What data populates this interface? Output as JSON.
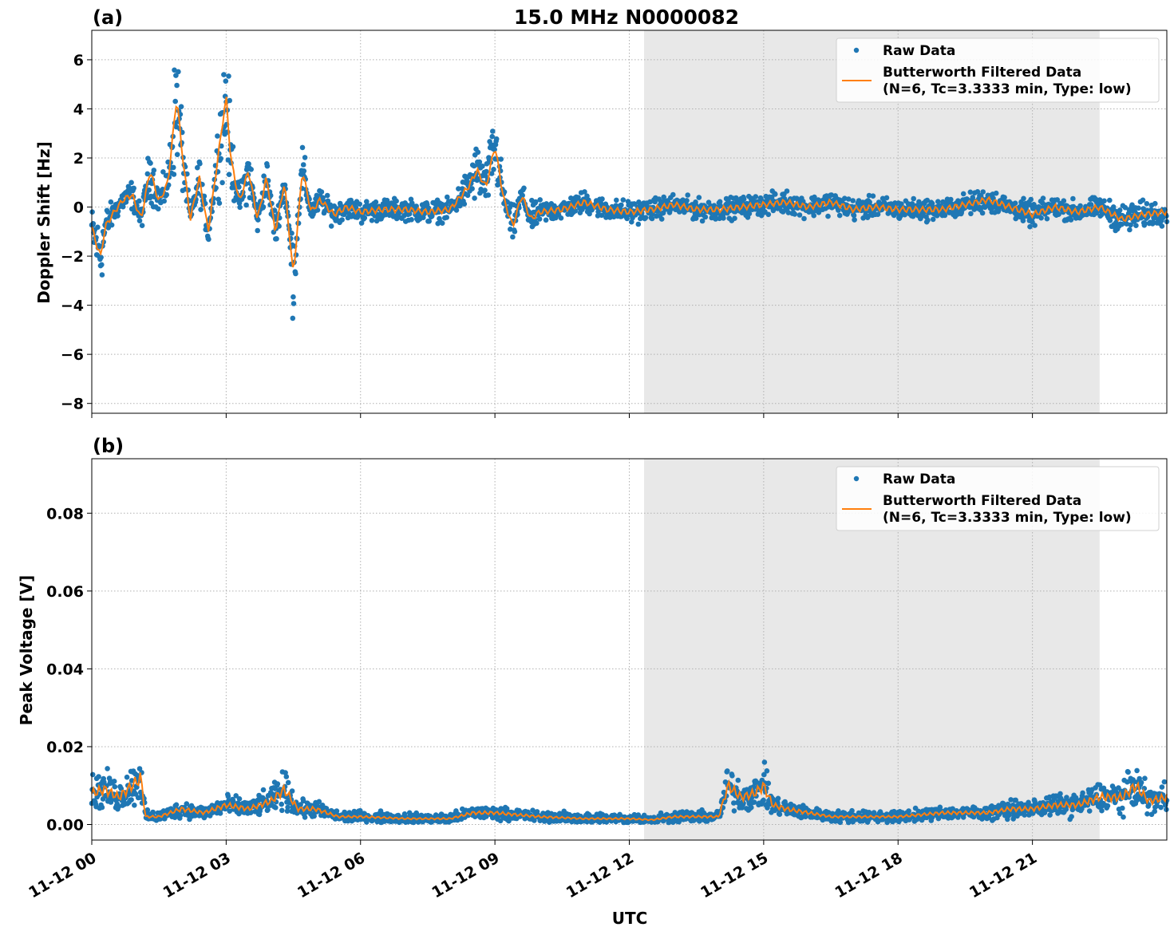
{
  "figure_title": "15.0 MHz N0000082",
  "xlabel": "UTC",
  "x_ticks": [
    "11-12 00",
    "11-12 03",
    "11-12 06",
    "11-12 09",
    "11-12 12",
    "11-12 15",
    "11-12 18",
    "11-12 21"
  ],
  "colors": {
    "raw": "#1f77b4",
    "filtered": "#ff7f0e",
    "shade": "#e8e8e8",
    "grid": "#b0b0b0"
  },
  "chart_data": [
    {
      "type": "scatter",
      "panel_label": "(a)",
      "ylabel": "Doppler Shift [Hz]",
      "x_unit": "hours since 11-12 00 UTC",
      "xlim": [
        0,
        24
      ],
      "ylim": [
        -8.4,
        7.2
      ],
      "y_ticks": [
        6,
        4,
        2,
        0,
        -2,
        -4,
        -6,
        -8
      ],
      "y_tick_labels": [
        "6",
        "4",
        "2",
        "0",
        "−2",
        "−4",
        "−6",
        "−8"
      ],
      "shaded_interval": [
        12.33,
        22.5
      ],
      "grid": true,
      "legend_position": "upper right",
      "series": [
        {
          "name": "Raw Data",
          "kind": "points",
          "spread": 0.5,
          "x": [
            0,
            0.1,
            0.2,
            0.3,
            0.5,
            0.7,
            0.9,
            1.1,
            1.3,
            1.5,
            1.7,
            1.9,
            2.0,
            2.2,
            2.4,
            2.6,
            2.8,
            3.0,
            3.1,
            3.3,
            3.5,
            3.7,
            3.9,
            4.1,
            4.3,
            4.5,
            4.7,
            4.9,
            5.1,
            5.4,
            5.7,
            6.0,
            6.5,
            7.0,
            7.5,
            8.0,
            8.4,
            8.6,
            8.8,
            9.0,
            9.2,
            9.4,
            9.6,
            9.8,
            10.0,
            10.5,
            11.0,
            11.5,
            12.0,
            12.5,
            13.0,
            13.5,
            14.0,
            14.5,
            15.0,
            15.5,
            16.0,
            16.5,
            17.0,
            17.5,
            18.0,
            18.5,
            19.0,
            19.5,
            20.0,
            20.5,
            21.0,
            21.5,
            22.0,
            22.5,
            23.0,
            23.5,
            24.0
          ],
          "y": [
            -0.8,
            -1.5,
            -2.0,
            -0.8,
            -0.2,
            0.3,
            0.5,
            -0.5,
            1.5,
            0.2,
            1.0,
            4.5,
            2.5,
            -0.5,
            1.2,
            -1.0,
            1.8,
            4.5,
            2.0,
            0.2,
            1.5,
            -0.5,
            1.2,
            -1.0,
            1.0,
            -2.8,
            1.5,
            -0.2,
            0.3,
            -0.3,
            0.0,
            -0.2,
            -0.1,
            -0.1,
            -0.2,
            -0.1,
            0.8,
            1.5,
            0.8,
            2.5,
            0.3,
            -0.8,
            0.5,
            -0.5,
            -0.2,
            -0.1,
            0.2,
            -0.1,
            -0.2,
            -0.1,
            0.1,
            -0.1,
            -0.1,
            0.0,
            0.1,
            0.2,
            0.0,
            0.2,
            -0.1,
            0.0,
            -0.1,
            -0.1,
            -0.1,
            0.1,
            0.3,
            0.0,
            -0.3,
            0.0,
            -0.2,
            0.0,
            -0.5,
            -0.3,
            -0.2
          ]
        },
        {
          "name": "Butterworth Filtered Data\n(N=6, Tc=3.3333 min, Type: low)",
          "kind": "line",
          "x": [
            0,
            0.1,
            0.2,
            0.3,
            0.5,
            0.7,
            0.9,
            1.1,
            1.3,
            1.5,
            1.7,
            1.9,
            2.0,
            2.2,
            2.4,
            2.6,
            2.8,
            3.0,
            3.1,
            3.3,
            3.5,
            3.7,
            3.9,
            4.1,
            4.3,
            4.5,
            4.7,
            4.9,
            5.1,
            5.4,
            5.7,
            6.0,
            6.5,
            7.0,
            7.5,
            8.0,
            8.4,
            8.6,
            8.8,
            9.0,
            9.2,
            9.4,
            9.6,
            9.8,
            10.0,
            10.5,
            11.0,
            11.5,
            12.0,
            12.5,
            13.0,
            13.5,
            14.0,
            14.5,
            15.0,
            15.5,
            16.0,
            16.5,
            17.0,
            17.5,
            18.0,
            18.5,
            19.0,
            19.5,
            20.0,
            20.5,
            21.0,
            21.5,
            22.0,
            22.5,
            23.0,
            23.5,
            24.0
          ],
          "y": [
            -0.8,
            -1.5,
            -2.0,
            -0.8,
            -0.2,
            0.3,
            0.5,
            -0.5,
            1.5,
            0.2,
            1.0,
            4.5,
            2.5,
            -0.5,
            1.2,
            -1.0,
            1.8,
            4.5,
            2.0,
            0.2,
            1.5,
            -0.5,
            1.2,
            -1.0,
            1.0,
            -2.8,
            1.5,
            -0.2,
            0.3,
            -0.3,
            0.0,
            -0.2,
            -0.1,
            -0.1,
            -0.2,
            -0.1,
            0.8,
            1.5,
            0.8,
            2.5,
            0.3,
            -0.8,
            0.5,
            -0.5,
            -0.2,
            -0.1,
            0.2,
            -0.1,
            -0.2,
            -0.1,
            0.1,
            -0.1,
            -0.1,
            0.0,
            0.1,
            0.2,
            0.0,
            0.2,
            -0.1,
            0.0,
            -0.1,
            -0.1,
            -0.1,
            0.1,
            0.3,
            0.0,
            -0.3,
            0.0,
            -0.2,
            0.0,
            -0.5,
            -0.3,
            -0.2
          ]
        }
      ]
    },
    {
      "type": "scatter",
      "panel_label": "(b)",
      "ylabel": "Peak Voltage [V]",
      "x_unit": "hours since 11-12 00 UTC",
      "xlim": [
        0,
        24
      ],
      "ylim": [
        -0.004,
        0.094
      ],
      "y_ticks": [
        0.0,
        0.02,
        0.04,
        0.06,
        0.08
      ],
      "y_tick_labels": [
        "0.00",
        "0.02",
        "0.04",
        "0.06",
        "0.08"
      ],
      "shaded_interval": [
        12.33,
        22.5
      ],
      "grid": true,
      "legend_position": "upper right",
      "series": [
        {
          "name": "Raw Data",
          "kind": "points",
          "spread": 0.003,
          "x": [
            0,
            0.3,
            0.6,
            0.9,
            1.1,
            1.2,
            1.5,
            2.0,
            2.5,
            3.0,
            3.5,
            4.0,
            4.3,
            4.6,
            5.0,
            5.5,
            6.0,
            7.0,
            8.0,
            8.5,
            9.0,
            10.0,
            11.0,
            12.0,
            12.5,
            13.0,
            13.5,
            14.0,
            14.2,
            14.5,
            14.8,
            15.0,
            15.2,
            15.5,
            16.0,
            16.5,
            17.0,
            18.0,
            19.0,
            20.0,
            20.5,
            21.0,
            21.5,
            22.0,
            22.5,
            23.0,
            23.3,
            23.6,
            24.0
          ],
          "y": [
            0.008,
            0.009,
            0.007,
            0.01,
            0.012,
            0.002,
            0.002,
            0.004,
            0.003,
            0.005,
            0.004,
            0.006,
            0.009,
            0.004,
            0.004,
            0.002,
            0.002,
            0.0015,
            0.0015,
            0.003,
            0.003,
            0.002,
            0.0015,
            0.0015,
            0.0012,
            0.002,
            0.002,
            0.002,
            0.01,
            0.007,
            0.008,
            0.01,
            0.005,
            0.004,
            0.003,
            0.002,
            0.002,
            0.002,
            0.003,
            0.003,
            0.004,
            0.004,
            0.005,
            0.005,
            0.007,
            0.007,
            0.01,
            0.006,
            0.007
          ]
        },
        {
          "name": "Butterworth Filtered Data\n(N=6, Tc=3.3333 min, Type: low)",
          "kind": "line",
          "x": [
            0,
            0.3,
            0.6,
            0.9,
            1.1,
            1.2,
            1.5,
            2.0,
            2.5,
            3.0,
            3.5,
            4.0,
            4.3,
            4.6,
            5.0,
            5.5,
            6.0,
            7.0,
            8.0,
            8.5,
            9.0,
            10.0,
            11.0,
            12.0,
            12.5,
            13.0,
            13.5,
            14.0,
            14.2,
            14.5,
            14.8,
            15.0,
            15.2,
            15.5,
            16.0,
            16.5,
            17.0,
            18.0,
            19.0,
            20.0,
            20.5,
            21.0,
            21.5,
            22.0,
            22.5,
            23.0,
            23.3,
            23.6,
            24.0
          ],
          "y": [
            0.008,
            0.009,
            0.007,
            0.01,
            0.012,
            0.002,
            0.002,
            0.004,
            0.003,
            0.005,
            0.004,
            0.006,
            0.009,
            0.004,
            0.004,
            0.002,
            0.002,
            0.0015,
            0.0015,
            0.003,
            0.003,
            0.002,
            0.0015,
            0.0015,
            0.0012,
            0.002,
            0.002,
            0.002,
            0.01,
            0.007,
            0.008,
            0.01,
            0.005,
            0.004,
            0.003,
            0.002,
            0.002,
            0.002,
            0.003,
            0.003,
            0.004,
            0.004,
            0.005,
            0.005,
            0.007,
            0.007,
            0.01,
            0.006,
            0.007
          ]
        }
      ]
    }
  ]
}
